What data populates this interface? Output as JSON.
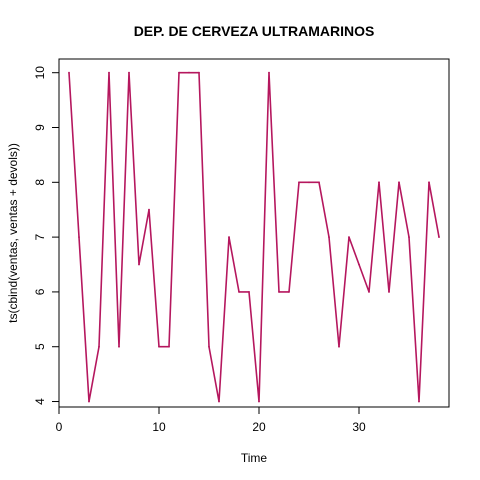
{
  "chart_data": {
    "type": "line",
    "title": "DEP. DE CERVEZA ULTRAMARINOS",
    "xlabel": "Time",
    "ylabel": "ts(cbind(ventas, ventas + devols))",
    "xlim": [
      0,
      39
    ],
    "ylim": [
      3.9,
      10.25
    ],
    "x_ticks": [
      0,
      10,
      20,
      30
    ],
    "y_ticks": [
      4,
      5,
      6,
      7,
      8,
      9,
      10
    ],
    "grid": false,
    "series": [
      {
        "color": "#b5175e",
        "x": [
          1,
          2,
          3,
          4,
          5,
          6,
          7,
          8,
          9,
          10,
          11,
          12,
          13,
          14,
          15,
          16,
          17,
          18,
          19,
          20,
          21,
          22,
          23,
          24,
          25,
          26,
          27,
          28,
          29,
          30,
          31,
          32,
          33,
          34,
          35,
          36,
          37,
          38
        ],
        "y": [
          10,
          7,
          4,
          5,
          10,
          5,
          10,
          6.5,
          7.5,
          5,
          5,
          10,
          10,
          10,
          5,
          4,
          7,
          6,
          6,
          4,
          10,
          6,
          6,
          8,
          8,
          8,
          7,
          5,
          7,
          6.5,
          6,
          8,
          6,
          8,
          7,
          4,
          8,
          7
        ]
      }
    ]
  }
}
